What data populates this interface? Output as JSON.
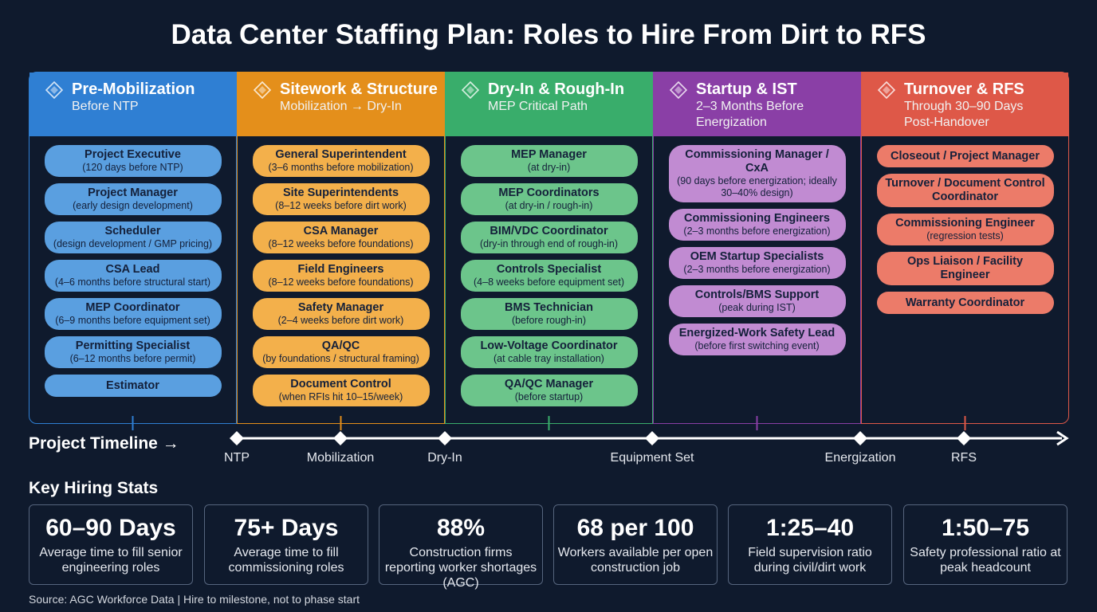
{
  "title": "Data Center Staffing Plan: Roles to Hire From Dirt to RFS",
  "phases": [
    {
      "name": "Pre-Mobilization",
      "subtitle": "Before NTP",
      "roles": [
        {
          "title": "Project Executive",
          "note": "(120 days before NTP)"
        },
        {
          "title": "Project Manager",
          "note": "(early design development)"
        },
        {
          "title": "Scheduler",
          "note": "(design development / GMP pricing)"
        },
        {
          "title": "CSA Lead",
          "note": "(4–6 months before structural start)"
        },
        {
          "title": "MEP Coordinator",
          "note": "(6–9 months before equipment set)"
        },
        {
          "title": "Permitting Specialist",
          "note": "(6–12 months before permit)"
        },
        {
          "title": "Estimator"
        }
      ]
    },
    {
      "name": "Sitework & Structure",
      "subtitle": "Mobilization → Dry-In",
      "roles": [
        {
          "title": "General Superintendent",
          "note": "(3–6 months before mobilization)"
        },
        {
          "title": "Site Superintendents",
          "note": "(8–12 weeks before dirt work)"
        },
        {
          "title": "CSA Manager",
          "note": "(8–12 weeks before foundations)"
        },
        {
          "title": "Field Engineers",
          "note": "(8–12 weeks before foundations)"
        },
        {
          "title": "Safety Manager",
          "note": "(2–4 weeks before dirt work)"
        },
        {
          "title": "QA/QC",
          "note": "(by foundations / structural framing)"
        },
        {
          "title": "Document Control",
          "note": "(when RFIs hit 10–15/week)"
        }
      ]
    },
    {
      "name": "Dry-In & Rough-In",
      "subtitle": "MEP Critical Path",
      "roles": [
        {
          "title": "MEP Manager",
          "note": "(at dry-in)"
        },
        {
          "title": "MEP Coordinators",
          "note": "(at dry-in / rough-in)"
        },
        {
          "title": "BIM/VDC Coordinator",
          "note": "(dry-in through end of rough-in)"
        },
        {
          "title": "Controls Specialist",
          "note": "(4–8 weeks before equipment set)"
        },
        {
          "title": "BMS Technician",
          "note": "(before rough-in)"
        },
        {
          "title": "Low-Voltage Coordinator",
          "note": "(at cable tray installation)"
        },
        {
          "title": "QA/QC Manager",
          "note": "(before startup)"
        }
      ]
    },
    {
      "name": "Startup & IST",
      "subtitle": "2–3 Months Before Energization",
      "roles": [
        {
          "title": "Commissioning Manager / CxA",
          "note": "(90 days before energization; ideally 30–40% design)"
        },
        {
          "title": "Commissioning Engineers",
          "note": "(2–3 months before energization)"
        },
        {
          "title": "OEM Startup Specialists",
          "note": "(2–3 months before energization)"
        },
        {
          "title": "Controls/BMS Support",
          "note": "(peak during IST)"
        },
        {
          "title": "Energized-Work Safety Lead",
          "note": "(before first switching event)"
        }
      ]
    },
    {
      "name": "Turnover & RFS",
      "subtitle": "Through 30–90 Days Post-Handover",
      "roles": [
        {
          "title": "Closeout / Project Manager"
        },
        {
          "title": "Turnover / Document Control Coordinator"
        },
        {
          "title": "Commissioning Engineer",
          "note": "(regression tests)"
        },
        {
          "title": "Ops Liaison / Facility Engineer"
        },
        {
          "title": "Warranty Coordinator"
        }
      ]
    }
  ],
  "timeline": {
    "label": "Project Timeline →",
    "milestones": [
      "NTP",
      "Mobilization",
      "Dry-In",
      "Equipment Set",
      "Energization",
      "RFS"
    ]
  },
  "stats": {
    "title": "Key Hiring Stats",
    "items": [
      {
        "value": "60–90 Days",
        "description": "Average time to fill senior engineering roles"
      },
      {
        "value": "75+ Days",
        "description": "Average time to fill commissioning roles"
      },
      {
        "value": "88%",
        "description": "Construction firms reporting worker shortages (AGC)"
      },
      {
        "value": "68 per 100",
        "description": "Workers available per open construction job"
      },
      {
        "value": "1:25–40",
        "description": "Field supervision ratio during civil/dirt work"
      },
      {
        "value": "1:50–75",
        "description": "Safety professional ratio at peak headcount"
      }
    ]
  },
  "source": "Source: AGC Workforce Data | Hire to milestone, not to phase start"
}
